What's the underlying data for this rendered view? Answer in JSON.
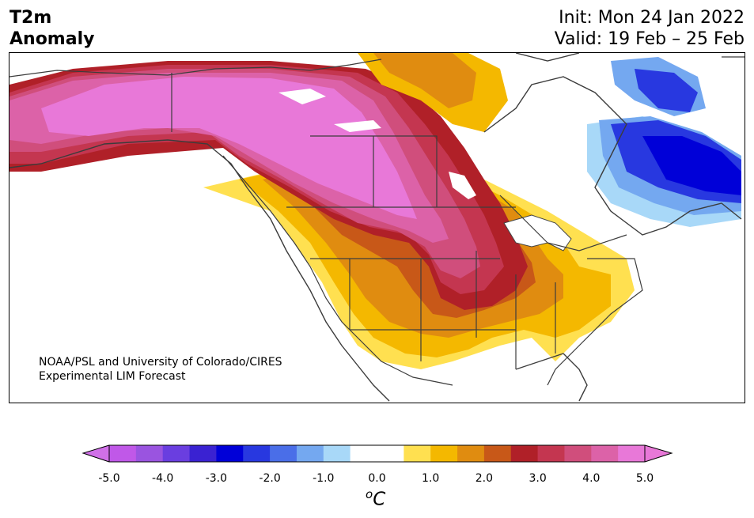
{
  "header": {
    "variable": "T2m",
    "subtitle": "Anomaly",
    "init": "Init: Mon 24 Jan 2022",
    "valid": "Valid: 19 Feb – 25 Feb"
  },
  "credit": {
    "line1": "NOAA/PSL and University of Colorado/CIRES",
    "line2": "Experimental LIM Forecast"
  },
  "colorbar": {
    "unit_sup": "o",
    "unit": "C",
    "ticks": [
      "-5.0",
      "-4.0",
      "-3.0",
      "-2.0",
      "-1.0",
      "0.0",
      "1.0",
      "2.0",
      "3.0",
      "4.0",
      "5.0"
    ],
    "colors": [
      "#c058e8",
      "#9a54e0",
      "#6a3ee0",
      "#3a22d2",
      "#0000d8",
      "#2838e0",
      "#4a6ee8",
      "#74a8f0",
      "#a8d8f8",
      "#ffffff",
      "#ffffff",
      "#ffe050",
      "#f4b800",
      "#e08c10",
      "#c85818",
      "#b02028",
      "#c43650",
      "#d04e7c",
      "#dc62a8",
      "#e878d8"
    ],
    "under_color": "#d070e8",
    "over_color": "#e878d8"
  }
}
